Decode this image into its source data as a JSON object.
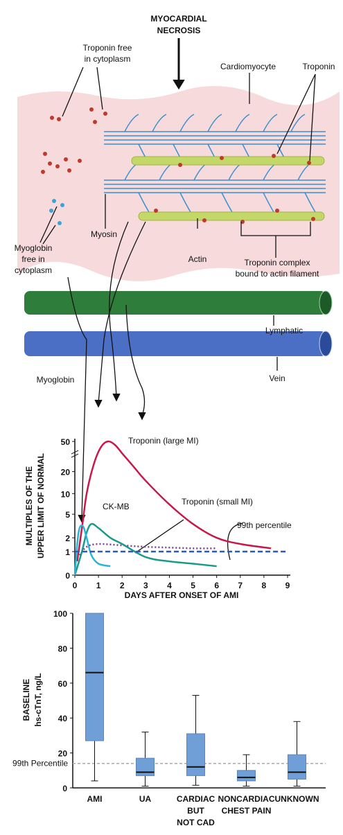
{
  "diagram": {
    "title": [
      "MYOCARDIAL",
      "NECROSIS"
    ],
    "troponin_free": [
      "Troponin free",
      "in cytoplasm"
    ],
    "cardiomyocyte": "Cardiomyocyte",
    "troponin": "Troponin",
    "myoglobin_free": [
      "Myoglobin",
      "free in",
      "cytoplasm"
    ],
    "myosin": "Myosin",
    "actin": "Actin",
    "troponin_complex": [
      "Troponin complex",
      "bound to actin filament"
    ],
    "lymphatic": "Lymphatic",
    "vein": "Vein"
  },
  "chart_data": [
    {
      "type": "line",
      "ylabel": [
        "MULTIPLES OF THE",
        "UPPER LIMIT OF NORMAL"
      ],
      "xlabel": "DAYS AFTER ONSET OF AMI",
      "xlim": [
        0,
        9
      ],
      "xticks": [
        0,
        1,
        2,
        3,
        4,
        5,
        6,
        7,
        8,
        9
      ],
      "ylim": [
        0,
        50
      ],
      "yticks": [
        0,
        1,
        2,
        5,
        10,
        20,
        50
      ],
      "yscale": "log1p",
      "series": [
        {
          "name": "Troponin (large MI)",
          "color": "#c8184a",
          "style": "solid",
          "x": [
            0.1,
            0.3,
            0.5,
            0.8,
            1.1,
            1.4,
            1.7,
            2,
            2.5,
            3,
            4,
            5,
            6,
            7,
            8.3
          ],
          "values": [
            0.5,
            3,
            10,
            25,
            42,
            50,
            45,
            35,
            23,
            15,
            7,
            3.5,
            2,
            1.5,
            1.2
          ]
        },
        {
          "name": "Troponin (small MI)",
          "color": "#7b3f8c",
          "style": "dotted",
          "x": [
            0.2,
            0.5,
            1,
            2,
            3,
            4,
            5,
            6
          ],
          "values": [
            0.8,
            1.3,
            1.5,
            1.4,
            1.3,
            1.25,
            1.2,
            1.2
          ]
        },
        {
          "name": "CK-MB",
          "color": "#1a9a8a",
          "style": "solid",
          "x": [
            0,
            0.3,
            0.5,
            0.7,
            1,
            1.5,
            2,
            3,
            4,
            5,
            6
          ],
          "values": [
            0,
            1,
            2.5,
            3.5,
            3,
            2,
            1.5,
            0.7,
            0.5,
            0.4,
            0.3
          ]
        },
        {
          "name": "Myoglobin",
          "color": "#29b6d6",
          "style": "solid",
          "x": [
            0,
            0.1,
            0.2,
            0.35,
            0.5,
            0.7,
            1,
            1.5
          ],
          "values": [
            0,
            1.5,
            3,
            3.2,
            2,
            0.8,
            0.4,
            0.3
          ]
        },
        {
          "name": "99th percentile",
          "color": "#2a5ab8",
          "style": "dashed",
          "x": [
            0,
            9
          ],
          "values": [
            1,
            1
          ]
        }
      ]
    },
    {
      "type": "box",
      "ylabel": [
        "BASELINE",
        "hs-cTnT, ng/L"
      ],
      "ylim": [
        0,
        100
      ],
      "yticks": [
        0,
        20,
        40,
        60,
        80,
        100
      ],
      "color": "#6f9fd6",
      "categories": [
        [
          "AMI"
        ],
        [
          "UA"
        ],
        [
          "CARDIAC",
          "BUT",
          "NOT CAD"
        ],
        [
          "NONCARDIAC",
          "CHEST PAIN"
        ],
        [
          "UNKNOWN"
        ]
      ],
      "min": [
        4,
        1,
        1.5,
        1,
        1
      ],
      "q1": [
        27,
        7,
        7,
        4,
        5
      ],
      "median": [
        66,
        9,
        12,
        6,
        9
      ],
      "q3": [
        100,
        17,
        31,
        10,
        19
      ],
      "max": [
        100,
        32,
        53,
        19,
        38
      ],
      "reference_line": {
        "value": 14,
        "label": "99th Percentile"
      }
    }
  ]
}
